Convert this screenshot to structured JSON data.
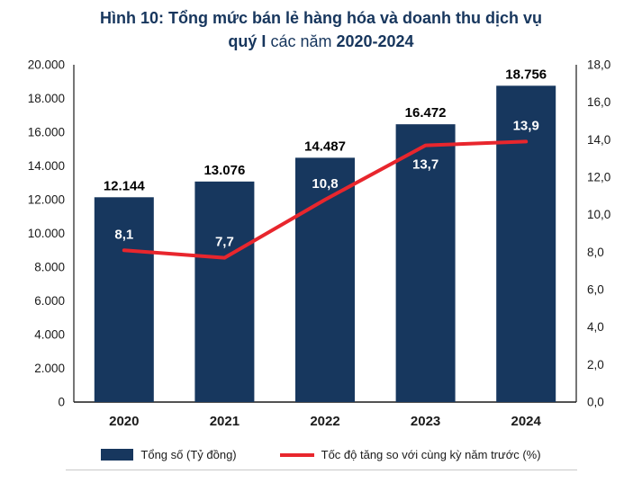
{
  "title": {
    "line1": "Hình 10: Tổng mức bán lẻ hàng hóa và doanh thu dịch vụ",
    "line2_bold1": "quý I",
    "line2_regular": " các năm ",
    "line2_bold2": "2020-2024"
  },
  "colors": {
    "title": "#17365D",
    "bar": "#17375E",
    "line": "#E8262D",
    "axis": "#1a1a1a"
  },
  "chart_data": {
    "type": "combo-bar-line",
    "categories": [
      "2020",
      "2021",
      "2022",
      "2023",
      "2024"
    ],
    "series": [
      {
        "name": "Tổng số (Tỷ đồng)",
        "type": "bar",
        "axis": "left",
        "color": "#17375E",
        "values": [
          12144,
          13076,
          14487,
          16472,
          18756
        ],
        "labels": [
          "12.144",
          "13.076",
          "14.487",
          "16.472",
          "18.756"
        ]
      },
      {
        "name": "Tốc độ tăng so với cùng kỳ năm trước (%)",
        "type": "line",
        "axis": "right",
        "color": "#E8262D",
        "values": [
          8.1,
          7.7,
          10.8,
          13.7,
          13.9
        ],
        "labels": [
          "8,1",
          "7,7",
          "10,8",
          "13,7",
          "13,9"
        ],
        "label_positions": [
          "above",
          "above",
          "above",
          "below",
          "above"
        ]
      }
    ],
    "left_axis": {
      "min": 0,
      "max": 20000,
      "step": 2000,
      "tick_labels": [
        "0",
        "2.000",
        "4.000",
        "6.000",
        "8.000",
        "10.000",
        "12.000",
        "14.000",
        "16.000",
        "18.000",
        "20.000"
      ]
    },
    "right_axis": {
      "min": 0,
      "max": 18,
      "step": 2,
      "tick_labels": [
        "0,0",
        "2,0",
        "4,0",
        "6,0",
        "8,0",
        "10,0",
        "12,0",
        "14,0",
        "16,0",
        "18,0"
      ]
    },
    "grid": "off",
    "legend_position": "bottom",
    "legend": [
      "Tổng số (Tỷ đồng)",
      "Tốc độ tăng so với cùng kỳ năm trước (%)"
    ]
  }
}
